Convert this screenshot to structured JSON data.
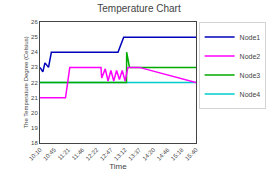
{
  "chart_data": {
    "type": "line",
    "title": "Temperature Chart",
    "xlabel": "Time",
    "ylabel": "The Temperature Degree (Celsius)",
    "xlim": [
      0,
      11
    ],
    "xticks": [
      {
        "value": 0,
        "label": "10:10"
      },
      {
        "value": 1,
        "label": "10:45"
      },
      {
        "value": 2,
        "label": "11:21"
      },
      {
        "value": 3,
        "label": "11:46"
      },
      {
        "value": 4,
        "label": "12:22"
      },
      {
        "value": 5,
        "label": "12:47"
      },
      {
        "value": 6,
        "label": "13:12"
      },
      {
        "value": 7,
        "label": "13:37"
      },
      {
        "value": 8,
        "label": "14:20"
      },
      {
        "value": 9,
        "label": "14:46"
      },
      {
        "value": 10,
        "label": "15:18"
      },
      {
        "value": 11,
        "label": "15:40"
      }
    ],
    "ylim": [
      18,
      26
    ],
    "yticks": [
      18,
      19,
      20,
      21,
      22,
      23,
      24,
      25,
      26
    ],
    "grid": false,
    "legend": "upper right",
    "series": [
      {
        "name": "Node1",
        "color": "#0000BB",
        "x": [
          0,
          0.2,
          0.35,
          0.6,
          0.8,
          5.5,
          5.9,
          11
        ],
        "values": [
          23.0,
          22.7,
          23.3,
          23.0,
          24.0,
          24.0,
          25.0,
          25.0
        ]
      },
      {
        "name": "Node2",
        "color": "#FF00FF",
        "x": [
          0,
          0.05,
          1.8,
          2.1,
          4.3,
          4.35,
          4.6,
          4.8,
          5.0,
          5.2,
          5.4,
          5.6,
          5.8,
          6.0,
          6.2,
          6.5,
          7.0,
          11
        ],
        "values": [
          21.0,
          21.0,
          21.0,
          23.0,
          23.0,
          22.3,
          22.9,
          22.1,
          22.8,
          22.1,
          22.8,
          22.2,
          22.8,
          22.1,
          23.0,
          23.0,
          23.0,
          22.0
        ]
      },
      {
        "name": "Node3",
        "color": "#00AA00",
        "x": [
          0,
          4.3,
          4.31,
          6.1,
          6.11,
          6.3,
          6.31,
          11
        ],
        "values": [
          22.0,
          22.0,
          22.0,
          22.0,
          24.0,
          23.0,
          23.0,
          23.0
        ]
      },
      {
        "name": "Node4",
        "color": "#00CCCC",
        "x": [
          0,
          11
        ],
        "values": [
          22.0,
          22.0
        ]
      }
    ]
  }
}
